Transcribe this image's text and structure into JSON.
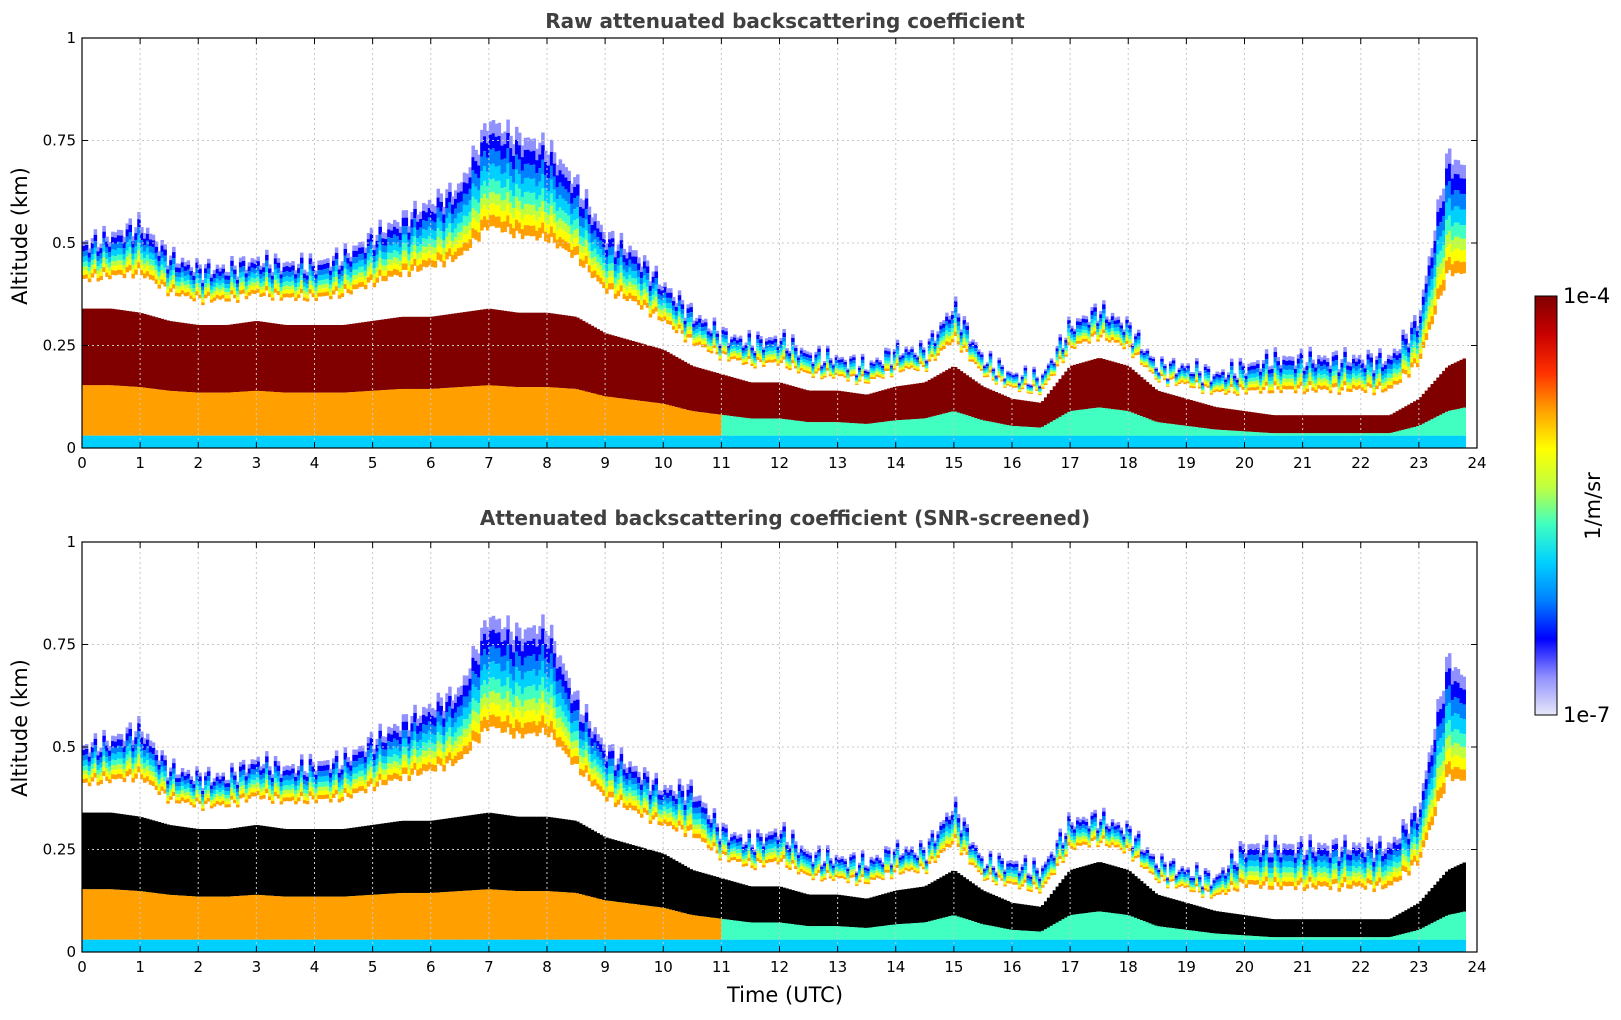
{
  "chart_data": [
    {
      "type": "heatmap",
      "title": "Raw attenuated backscattering coefficient",
      "xlabel": "",
      "ylabel": "Altitude (km)",
      "xlim": [
        0,
        24
      ],
      "ylim": [
        0,
        1
      ],
      "xticks": [
        "0",
        "1",
        "2",
        "3",
        "4",
        "5",
        "6",
        "7",
        "8",
        "9",
        "10",
        "11",
        "12",
        "13",
        "14",
        "15",
        "16",
        "17",
        "18",
        "19",
        "20",
        "21",
        "22",
        "23",
        "24"
      ],
      "yticks": [
        "0",
        "0.25",
        "0.5",
        "0.75",
        "1"
      ],
      "grid": true,
      "masked": false,
      "time_utc": [
        0,
        0.5,
        1,
        1.5,
        2,
        2.5,
        3,
        3.5,
        4,
        4.5,
        5,
        5.5,
        6,
        6.5,
        7,
        7.5,
        8,
        8.5,
        9,
        9.5,
        10,
        10.5,
        11,
        11.5,
        12,
        12.5,
        13,
        13.5,
        14,
        14.5,
        15,
        15.5,
        16,
        16.5,
        17,
        17.5,
        18,
        18.5,
        19,
        19.5,
        20,
        20.5,
        21,
        21.5,
        22,
        22.5,
        23,
        23.5,
        23.8
      ],
      "layer_top_km": [
        0.5,
        0.52,
        0.55,
        0.47,
        0.44,
        0.44,
        0.46,
        0.45,
        0.45,
        0.47,
        0.52,
        0.56,
        0.6,
        0.64,
        0.8,
        0.76,
        0.74,
        0.65,
        0.52,
        0.48,
        0.4,
        0.33,
        0.28,
        0.26,
        0.27,
        0.23,
        0.22,
        0.2,
        0.24,
        0.24,
        0.35,
        0.22,
        0.18,
        0.17,
        0.3,
        0.34,
        0.3,
        0.2,
        0.2,
        0.18,
        0.2,
        0.22,
        0.22,
        0.22,
        0.22,
        0.22,
        0.32,
        0.72,
        0.68
      ],
      "dense_top_km": [
        0.34,
        0.34,
        0.33,
        0.31,
        0.3,
        0.3,
        0.31,
        0.3,
        0.3,
        0.3,
        0.31,
        0.32,
        0.32,
        0.33,
        0.34,
        0.33,
        0.33,
        0.32,
        0.28,
        0.26,
        0.24,
        0.2,
        0.18,
        0.16,
        0.16,
        0.14,
        0.14,
        0.13,
        0.15,
        0.16,
        0.2,
        0.15,
        0.12,
        0.11,
        0.2,
        0.22,
        0.2,
        0.14,
        0.12,
        0.1,
        0.09,
        0.08,
        0.08,
        0.08,
        0.08,
        0.08,
        0.12,
        0.2,
        0.22
      ]
    },
    {
      "type": "heatmap",
      "title": "Attenuated backscattering coefficient (SNR-screened)",
      "xlabel": "Time (UTC)",
      "ylabel": "Altitude (km)",
      "xlim": [
        0,
        24
      ],
      "ylim": [
        0,
        1
      ],
      "xticks": [
        "0",
        "1",
        "2",
        "3",
        "4",
        "5",
        "6",
        "7",
        "8",
        "9",
        "10",
        "11",
        "12",
        "13",
        "14",
        "15",
        "16",
        "17",
        "18",
        "19",
        "20",
        "21",
        "22",
        "23",
        "24"
      ],
      "yticks": [
        "0",
        "0.25",
        "0.5",
        "0.75",
        "1"
      ],
      "grid": true,
      "masked": true,
      "time_utc": [
        0,
        0.5,
        1,
        1.5,
        2,
        2.5,
        3,
        3.5,
        4,
        4.5,
        5,
        5.5,
        6,
        6.5,
        7,
        7.5,
        8,
        8.5,
        9,
        9.5,
        10,
        10.5,
        11,
        11.5,
        12,
        12.5,
        13,
        13.5,
        14,
        14.5,
        15,
        15.5,
        16,
        16.5,
        17,
        17.5,
        18,
        18.5,
        19,
        19.5,
        20,
        20.5,
        21,
        21.5,
        22,
        22.5,
        23,
        23.5,
        23.8
      ],
      "layer_top_km": [
        0.5,
        0.52,
        0.55,
        0.45,
        0.43,
        0.43,
        0.47,
        0.45,
        0.46,
        0.47,
        0.52,
        0.56,
        0.6,
        0.64,
        0.82,
        0.78,
        0.8,
        0.62,
        0.5,
        0.45,
        0.4,
        0.4,
        0.3,
        0.27,
        0.3,
        0.24,
        0.23,
        0.22,
        0.25,
        0.25,
        0.36,
        0.22,
        0.22,
        0.2,
        0.32,
        0.33,
        0.3,
        0.22,
        0.2,
        0.18,
        0.26,
        0.26,
        0.26,
        0.26,
        0.26,
        0.26,
        0.35,
        0.72,
        0.66
      ],
      "dense_top_km": [
        0.34,
        0.34,
        0.33,
        0.31,
        0.3,
        0.3,
        0.31,
        0.3,
        0.3,
        0.3,
        0.31,
        0.32,
        0.32,
        0.33,
        0.34,
        0.33,
        0.33,
        0.32,
        0.28,
        0.26,
        0.24,
        0.2,
        0.18,
        0.16,
        0.16,
        0.14,
        0.14,
        0.13,
        0.15,
        0.16,
        0.2,
        0.15,
        0.12,
        0.11,
        0.2,
        0.22,
        0.2,
        0.14,
        0.12,
        0.1,
        0.09,
        0.08,
        0.08,
        0.08,
        0.08,
        0.08,
        0.12,
        0.2,
        0.22
      ]
    }
  ],
  "colorbar": {
    "label": "1/m/sr",
    "max_label": "1e-4",
    "min_label": "1e-7",
    "colors": [
      "#e8e8f8",
      "#9090ff",
      "#0000ff",
      "#0080ff",
      "#00d0ff",
      "#40ffc0",
      "#c0ff40",
      "#ffff00",
      "#ffa000",
      "#ff3000",
      "#c80000",
      "#800000"
    ]
  },
  "colors": {
    "saturated_masked": "#000000",
    "grid": "#c8c8c8",
    "title": "#404040"
  }
}
